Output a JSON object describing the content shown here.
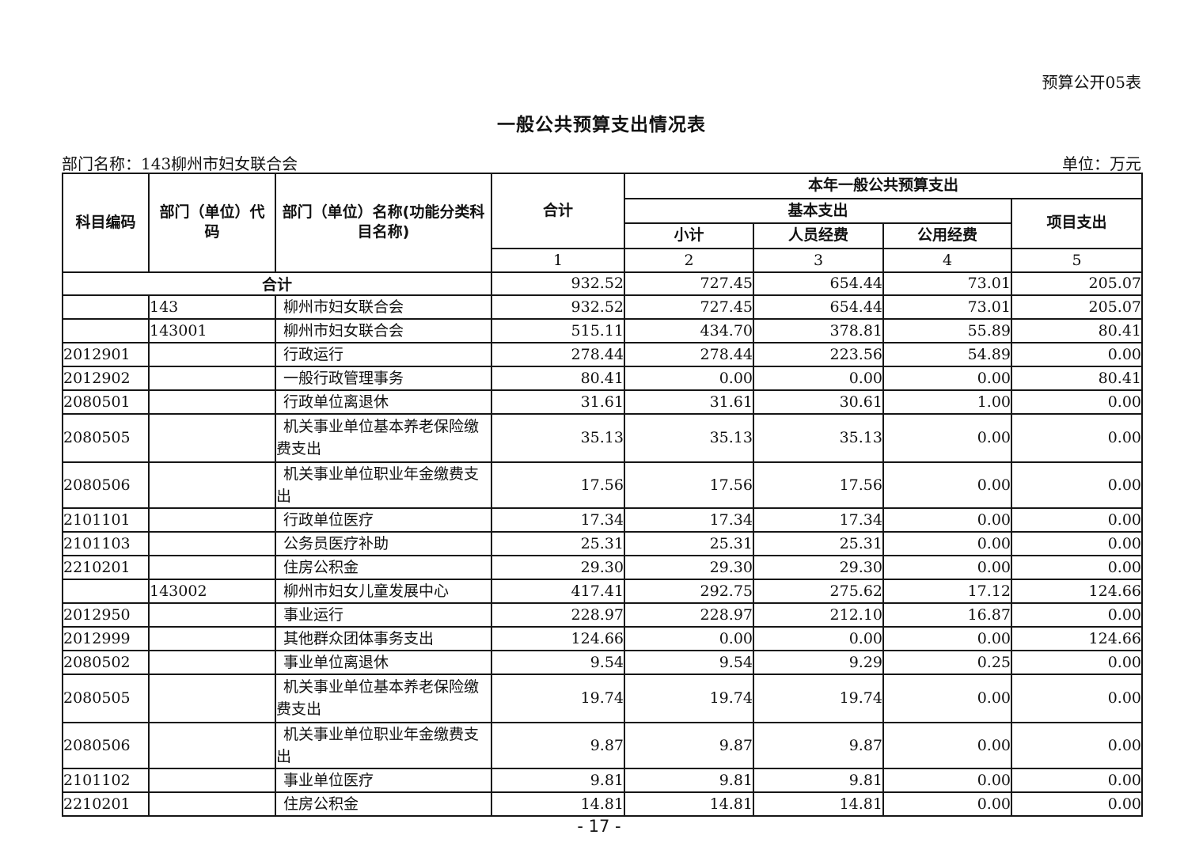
{
  "page": {
    "doc_code": "预算公开05表",
    "title": "一般公共预算支出情况表",
    "department_label": "部门名称：143柳州市妇女联合会",
    "unit_label": "单位：万元",
    "page_number": "- 17 -"
  },
  "table": {
    "header": {
      "col_subject_code": "科目编码",
      "col_dept_code": "部门（单位）代码",
      "col_dept_name": "部门（单位）名称(功能分类科目名称)",
      "col_total": "合计",
      "col_current_year_budget": "本年一般公共预算支出",
      "col_basic_expenditure": "基本支出",
      "col_subtotal": "小计",
      "col_personnel": "人员经费",
      "col_public_funds": "公用经费",
      "col_project": "项目支出",
      "col_numbers": [
        "1",
        "2",
        "3",
        "4",
        "5"
      ]
    },
    "total_row": {
      "label": "合计",
      "values": [
        "932.52",
        "727.45",
        "654.44",
        "73.01",
        "205.07"
      ]
    },
    "rows": [
      {
        "subject_code": "",
        "dept_code": "143",
        "name": "柳州市妇女联合会",
        "values": [
          "932.52",
          "727.45",
          "654.44",
          "73.01",
          "205.07"
        ],
        "tall": false
      },
      {
        "subject_code": "",
        "dept_code": "143001",
        "name": "柳州市妇女联合会",
        "values": [
          "515.11",
          "434.70",
          "378.81",
          "55.89",
          "80.41"
        ],
        "tall": false
      },
      {
        "subject_code": "2012901",
        "dept_code": "",
        "name": "行政运行",
        "values": [
          "278.44",
          "278.44",
          "223.56",
          "54.89",
          "0.00"
        ],
        "tall": false
      },
      {
        "subject_code": "2012902",
        "dept_code": "",
        "name": "一般行政管理事务",
        "values": [
          "80.41",
          "0.00",
          "0.00",
          "0.00",
          "80.41"
        ],
        "tall": false
      },
      {
        "subject_code": "2080501",
        "dept_code": "",
        "name": "行政单位离退休",
        "values": [
          "31.61",
          "31.61",
          "30.61",
          "1.00",
          "0.00"
        ],
        "tall": false
      },
      {
        "subject_code": "2080505",
        "dept_code": "",
        "name": "机关事业单位基本养老保险缴费支出",
        "values": [
          "35.13",
          "35.13",
          "35.13",
          "0.00",
          "0.00"
        ],
        "tall": true
      },
      {
        "subject_code": "2080506",
        "dept_code": "",
        "name": "机关事业单位职业年金缴费支出",
        "values": [
          "17.56",
          "17.56",
          "17.56",
          "0.00",
          "0.00"
        ],
        "tall": false
      },
      {
        "subject_code": "2101101",
        "dept_code": "",
        "name": "行政单位医疗",
        "values": [
          "17.34",
          "17.34",
          "17.34",
          "0.00",
          "0.00"
        ],
        "tall": false
      },
      {
        "subject_code": "2101103",
        "dept_code": "",
        "name": "公务员医疗补助",
        "values": [
          "25.31",
          "25.31",
          "25.31",
          "0.00",
          "0.00"
        ],
        "tall": false
      },
      {
        "subject_code": "2210201",
        "dept_code": "",
        "name": "住房公积金",
        "values": [
          "29.30",
          "29.30",
          "29.30",
          "0.00",
          "0.00"
        ],
        "tall": false
      },
      {
        "subject_code": "",
        "dept_code": "143002",
        "name": "柳州市妇女儿童发展中心",
        "values": [
          "417.41",
          "292.75",
          "275.62",
          "17.12",
          "124.66"
        ],
        "tall": false
      },
      {
        "subject_code": "2012950",
        "dept_code": "",
        "name": "事业运行",
        "values": [
          "228.97",
          "228.97",
          "212.10",
          "16.87",
          "0.00"
        ],
        "tall": false
      },
      {
        "subject_code": "2012999",
        "dept_code": "",
        "name": "其他群众团体事务支出",
        "values": [
          "124.66",
          "0.00",
          "0.00",
          "0.00",
          "124.66"
        ],
        "tall": false
      },
      {
        "subject_code": "2080502",
        "dept_code": "",
        "name": "事业单位离退休",
        "values": [
          "9.54",
          "9.54",
          "9.29",
          "0.25",
          "0.00"
        ],
        "tall": false
      },
      {
        "subject_code": "2080505",
        "dept_code": "",
        "name": "机关事业单位基本养老保险缴费支出",
        "values": [
          "19.74",
          "19.74",
          "19.74",
          "0.00",
          "0.00"
        ],
        "tall": true
      },
      {
        "subject_code": "2080506",
        "dept_code": "",
        "name": "机关事业单位职业年金缴费支出",
        "values": [
          "9.87",
          "9.87",
          "9.87",
          "0.00",
          "0.00"
        ],
        "tall": false
      },
      {
        "subject_code": "2101102",
        "dept_code": "",
        "name": "事业单位医疗",
        "values": [
          "9.81",
          "9.81",
          "9.81",
          "0.00",
          "0.00"
        ],
        "tall": false
      },
      {
        "subject_code": "2210201",
        "dept_code": "",
        "name": "住房公积金",
        "values": [
          "14.81",
          "14.81",
          "14.81",
          "0.00",
          "0.00"
        ],
        "tall": false
      }
    ]
  }
}
